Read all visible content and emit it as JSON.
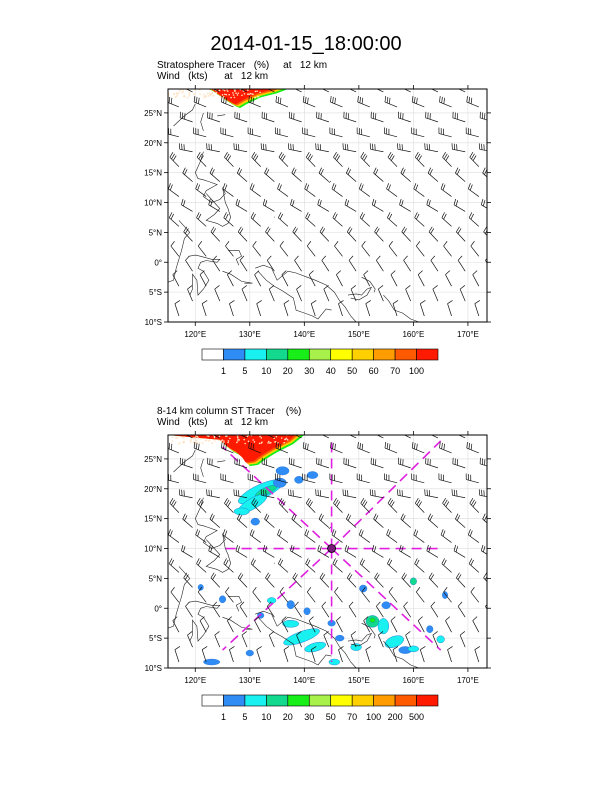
{
  "title": "2014-01-15_18:00:00",
  "panels": [
    {
      "label_line1": "Stratosphere Tracer   (%)     at   12 km",
      "label_line2": "Wind   (kts)      at   12 km",
      "colorbar_labels": [
        "1",
        "5",
        "10",
        "20",
        "30",
        "40",
        "50",
        "60",
        "70",
        "100"
      ],
      "colorbar_colors": [
        "#ffffff",
        "#2f8cf5",
        "#19f0f0",
        "#12d98e",
        "#18ee18",
        "#a8f04a",
        "#ffff00",
        "#ffd000",
        "#ff9d00",
        "#ff5a00",
        "#ff1a00"
      ]
    },
    {
      "label_line1": "8-14 km column ST Tracer    (%)",
      "label_line2": "Wind   (kts)      at   12 km",
      "colorbar_labels": [
        "1",
        "5",
        "10",
        "20",
        "30",
        "50",
        "70",
        "100",
        "200",
        "500"
      ],
      "colorbar_colors": [
        "#ffffff",
        "#2f8cf5",
        "#19f0f0",
        "#12d98e",
        "#18ee18",
        "#a8f04a",
        "#ffff00",
        "#ffd000",
        "#ff9d00",
        "#ff5a00",
        "#ff1a00"
      ]
    }
  ],
  "chart_data": [
    {
      "type": "heatmap",
      "title": "Stratosphere Tracer (%) at 12 km",
      "overlay": "Wind barbs (kts) at 12 km",
      "xlim": [
        115,
        173.5
      ],
      "ylim": [
        -10,
        29
      ],
      "x_ticks": [
        120,
        130,
        140,
        150,
        160,
        170
      ],
      "x_tick_labels": [
        "120°E",
        "130°E",
        "140°E",
        "150°E",
        "160°E",
        "170°E"
      ],
      "y_ticks": [
        -10,
        -5,
        0,
        5,
        10,
        15,
        20,
        25
      ],
      "y_tick_labels": [
        "10°S",
        "5°S",
        "0°",
        "5°N",
        "10°N",
        "15°N",
        "20°N",
        "25°N"
      ],
      "grid": true,
      "high_tracer_region": {
        "lon_range": [
          115,
          135
        ],
        "lat_range": [
          25,
          29
        ],
        "value": "100%"
      }
    },
    {
      "type": "heatmap",
      "title": "8-14 km column ST Tracer (%)",
      "overlay": "Wind barbs (kts) at 12 km",
      "xlim": [
        115,
        173.5
      ],
      "ylim": [
        -10,
        29
      ],
      "x_ticks": [
        120,
        130,
        140,
        150,
        160,
        170
      ],
      "x_tick_labels": [
        "120°E",
        "130°E",
        "140°E",
        "150°E",
        "160°E",
        "170°E"
      ],
      "y_ticks": [
        -10,
        -5,
        0,
        5,
        10,
        15,
        20,
        25
      ],
      "y_tick_labels": [
        "10°S",
        "5°S",
        "0°",
        "5°N",
        "10°N",
        "15°N",
        "20°N",
        "25°N"
      ],
      "grid": true,
      "cross_section_center": {
        "lon": 145,
        "lat": 10
      },
      "high_tracer_region": {
        "lon_range": [
          115,
          140
        ],
        "lat_range": [
          24,
          29
        ],
        "value": "500%"
      }
    }
  ]
}
